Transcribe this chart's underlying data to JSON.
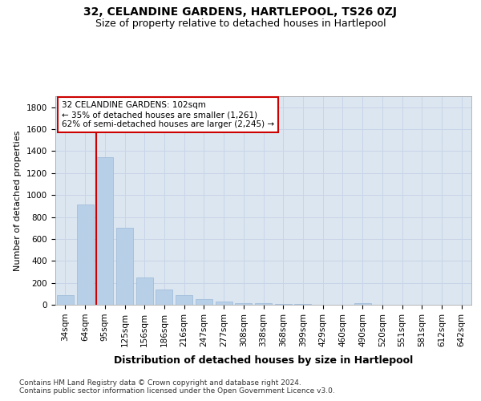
{
  "title1": "32, CELANDINE GARDENS, HARTLEPOOL, TS26 0ZJ",
  "title2": "Size of property relative to detached houses in Hartlepool",
  "xlabel": "Distribution of detached houses by size in Hartlepool",
  "ylabel": "Number of detached properties",
  "categories": [
    "34sqm",
    "64sqm",
    "95sqm",
    "125sqm",
    "156sqm",
    "186sqm",
    "216sqm",
    "247sqm",
    "277sqm",
    "308sqm",
    "338sqm",
    "368sqm",
    "399sqm",
    "429sqm",
    "460sqm",
    "490sqm",
    "520sqm",
    "551sqm",
    "581sqm",
    "612sqm",
    "642sqm"
  ],
  "values": [
    88,
    910,
    1345,
    700,
    250,
    140,
    85,
    52,
    28,
    18,
    12,
    8,
    5,
    3,
    2,
    18,
    2,
    1,
    0,
    0,
    0
  ],
  "bar_color": "#b8cfe8",
  "bar_edge_color": "#9ab8d8",
  "vline_color": "#cc0000",
  "annotation_text": "32 CELANDINE GARDENS: 102sqm\n← 35% of detached houses are smaller (1,261)\n62% of semi-detached houses are larger (2,245) →",
  "annotation_box_facecolor": "#ffffff",
  "annotation_box_edgecolor": "#cc0000",
  "ylim": [
    0,
    1900
  ],
  "yticks": [
    0,
    200,
    400,
    600,
    800,
    1000,
    1200,
    1400,
    1600,
    1800
  ],
  "grid_color": "#c8d4e8",
  "background_color": "#dce6f0",
  "footer_text": "Contains HM Land Registry data © Crown copyright and database right 2024.\nContains public sector information licensed under the Open Government Licence v3.0.",
  "title1_fontsize": 10,
  "title2_fontsize": 9,
  "xlabel_fontsize": 9,
  "ylabel_fontsize": 8,
  "tick_fontsize": 7.5,
  "footer_fontsize": 6.5
}
